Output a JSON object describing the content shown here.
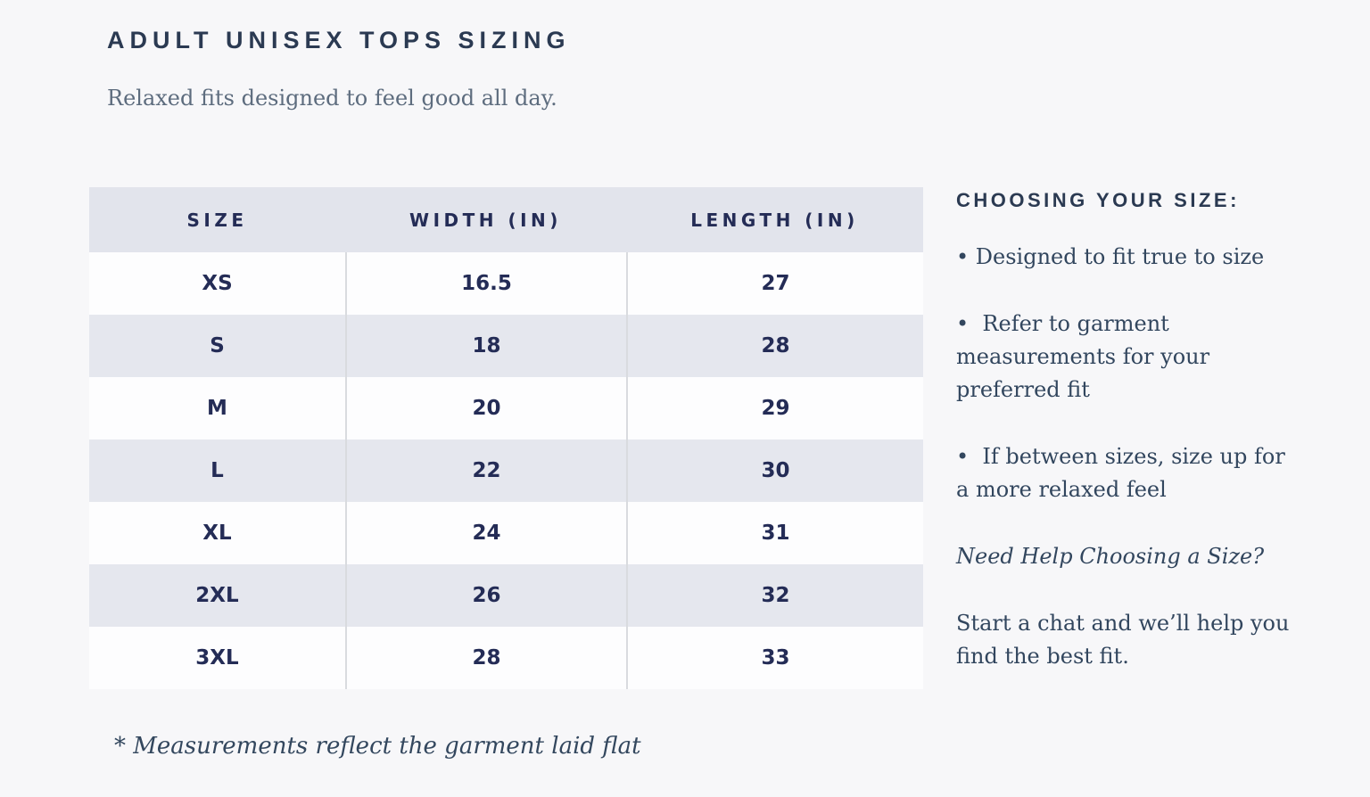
{
  "header": {
    "title": "ADULT UNISEX TOPS SIZING",
    "subtitle": "Relaxed fits designed to feel good all day."
  },
  "table": {
    "columns": [
      "SIZE",
      "WIDTH (IN)",
      "LENGTH (IN)"
    ],
    "rows": [
      {
        "size": "XS",
        "width_in": "16.5",
        "length_in": "27"
      },
      {
        "size": "S",
        "width_in": "18",
        "length_in": "28"
      },
      {
        "size": "M",
        "width_in": "20",
        "length_in": "29"
      },
      {
        "size": "L",
        "width_in": "22",
        "length_in": "30"
      },
      {
        "size": "XL",
        "width_in": "24",
        "length_in": "31"
      },
      {
        "size": "2XL",
        "width_in": "26",
        "length_in": "32"
      },
      {
        "size": "3XL",
        "width_in": "28",
        "length_in": "33"
      }
    ]
  },
  "sidebar": {
    "heading": "CHOOSING YOUR SIZE:",
    "bullets": [
      "• Designed to fit true to size",
      "•  Refer to garment measurements for your preferred fit",
      "•  If between sizes, size up for a more relaxed feel"
    ],
    "help_prompt": "Need Help Choosing a Size?",
    "help_text": "Start a chat and we’ll help you find the best fit."
  },
  "footnote": "* Measurements reflect the garment laid flat",
  "colors": {
    "page_background": "#f7f7f9",
    "table_header_background": "#e2e4ec",
    "table_stripe_background": "#e5e7ee",
    "table_white_row": "#fdfdfe",
    "column_divider": "#d9dbdf",
    "table_text": "#242c56",
    "heading_text": "#2b3a52",
    "serif_text": "#32465e",
    "subtitle_text": "#5d6c7e"
  }
}
